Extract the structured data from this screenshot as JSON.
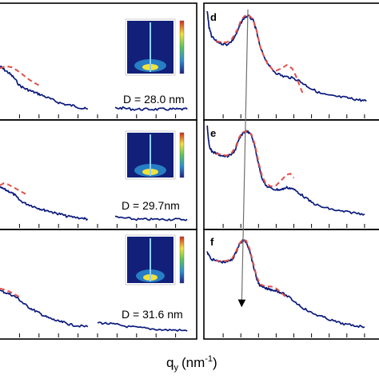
{
  "chart_data": {
    "type": "line",
    "xlabel": "q",
    "xlabel_sub": "y",
    "xlabel_unit": "(nm",
    "xlabel_unit_sup": "-1",
    "xlabel_unit_end": ")",
    "colors": {
      "data": "#0a1a7c",
      "fit": "#e0504a",
      "arrow": "#707070",
      "axes": "#000000"
    },
    "line_styles": {
      "data": "solid",
      "fit": "dashed"
    },
    "panels": [
      {
        "column": "left",
        "row": 0,
        "label": "",
        "annotation": "D = 28.0 nm",
        "inset": "2D GISAXS colormap",
        "data_segments": [
          [
            [
              0,
              0.54
            ],
            [
              0.2,
              0.57
            ],
            [
              0.45,
              0.6
            ],
            [
              0.7,
              0.64
            ],
            [
              1.0,
              0.71
            ],
            [
              1.3,
              0.74
            ],
            [
              1.6,
              0.76
            ],
            [
              1.9,
              0.78
            ],
            [
              2.2,
              0.8
            ],
            [
              2.6,
              0.83
            ],
            [
              3.0,
              0.86
            ],
            [
              3.4,
              0.88
            ],
            [
              3.8,
              0.89
            ],
            [
              4.2,
              0.91
            ],
            [
              4.5,
              0.92
            ]
          ],
          [
            [
              5.9,
              0.91
            ],
            [
              6.3,
              0.91
            ],
            [
              6.8,
              0.92
            ],
            [
              7.3,
              0.92
            ],
            [
              7.8,
              0.92
            ],
            [
              8.3,
              0.92
            ],
            [
              8.8,
              0.92
            ],
            [
              9.2,
              0.92
            ],
            [
              9.6,
              0.92
            ]
          ]
        ],
        "fit": [
          [
            0,
            0.56
          ],
          [
            0.3,
            0.54
          ],
          [
            0.6,
            0.55
          ],
          [
            0.9,
            0.58
          ],
          [
            1.2,
            0.62
          ],
          [
            1.5,
            0.66
          ],
          [
            2.0,
            0.71
          ]
        ]
      },
      {
        "column": "left",
        "row": 1,
        "label": "",
        "annotation": "D = 29.7nm",
        "inset": "2D GISAXS colormap",
        "data_segments": [
          [
            [
              0,
              0.62
            ],
            [
              0.25,
              0.64
            ],
            [
              0.5,
              0.66
            ],
            [
              0.75,
              0.69
            ],
            [
              1.0,
              0.74
            ],
            [
              1.3,
              0.77
            ],
            [
              1.6,
              0.79
            ],
            [
              1.9,
              0.81
            ],
            [
              2.2,
              0.83
            ],
            [
              2.5,
              0.84
            ],
            [
              2.8,
              0.86
            ],
            [
              3.1,
              0.87
            ],
            [
              3.4,
              0.89
            ],
            [
              3.8,
              0.9
            ],
            [
              4.3,
              0.91
            ],
            [
              4.5,
              0.92
            ]
          ],
          [
            [
              5.9,
              0.9
            ],
            [
              6.5,
              0.91
            ],
            [
              7.0,
              0.92
            ],
            [
              7.5,
              0.92
            ],
            [
              8.0,
              0.92
            ],
            [
              8.5,
              0.92
            ],
            [
              9.0,
              0.92
            ],
            [
              9.6,
              0.92
            ]
          ]
        ],
        "fit": [
          [
            0,
            0.6
          ],
          [
            0.2,
            0.58
          ],
          [
            0.4,
            0.59
          ],
          [
            0.6,
            0.61
          ],
          [
            0.9,
            0.64
          ],
          [
            1.2,
            0.67
          ],
          [
            1.4,
            0.69
          ]
        ]
      },
      {
        "column": "left",
        "row": 2,
        "label": "",
        "annotation": "D = 31.6 nm",
        "inset": "2D GISAXS colormap",
        "data_segments": [
          [
            [
              0,
              0.56
            ],
            [
              0.3,
              0.58
            ],
            [
              0.6,
              0.6
            ],
            [
              0.9,
              0.63
            ],
            [
              1.2,
              0.68
            ],
            [
              1.5,
              0.72
            ],
            [
              1.8,
              0.75
            ],
            [
              2.1,
              0.78
            ],
            [
              2.4,
              0.81
            ],
            [
              2.7,
              0.83
            ],
            [
              3.0,
              0.85
            ],
            [
              3.3,
              0.86
            ],
            [
              3.6,
              0.88
            ],
            [
              4.0,
              0.89
            ],
            [
              4.5,
              0.9
            ]
          ],
          [
            [
              5.0,
              0.86
            ],
            [
              5.5,
              0.87
            ],
            [
              6.0,
              0.88
            ],
            [
              6.6,
              0.9
            ],
            [
              7.2,
              0.91
            ],
            [
              7.8,
              0.92
            ],
            [
              8.4,
              0.93
            ],
            [
              9.0,
              0.93
            ],
            [
              9.6,
              0.94
            ]
          ]
        ],
        "fit": [
          [
            0,
            0.54
          ],
          [
            0.2,
            0.55
          ],
          [
            0.5,
            0.57
          ],
          [
            0.8,
            0.6
          ],
          [
            1.0,
            0.62
          ]
        ]
      },
      {
        "column": "right",
        "row": 0,
        "label": "d",
        "annotation": "",
        "data_segments": [
          [
            [
              0.1,
              0.05
            ],
            [
              0.2,
              0.2
            ],
            [
              0.35,
              0.28
            ],
            [
              0.6,
              0.32
            ],
            [
              0.9,
              0.34
            ],
            [
              1.2,
              0.35
            ],
            [
              1.5,
              0.32
            ],
            [
              1.8,
              0.24
            ],
            [
              2.0,
              0.16
            ],
            [
              2.2,
              0.11
            ],
            [
              2.45,
              0.1
            ],
            [
              2.7,
              0.14
            ],
            [
              2.9,
              0.24
            ],
            [
              3.1,
              0.38
            ],
            [
              3.4,
              0.48
            ],
            [
              3.7,
              0.56
            ],
            [
              4.0,
              0.6
            ],
            [
              4.4,
              0.63
            ],
            [
              4.8,
              0.64
            ],
            [
              5.2,
              0.66
            ],
            [
              5.6,
              0.7
            ],
            [
              6.0,
              0.74
            ],
            [
              6.5,
              0.78
            ],
            [
              7.0,
              0.8
            ],
            [
              7.5,
              0.81
            ],
            [
              8.0,
              0.82
            ],
            [
              8.4,
              0.83
            ],
            [
              8.8,
              0.84
            ],
            [
              9.1,
              0.85
            ]
          ],
          [
            [
              9.9,
              0.78
            ],
            [
              10.1,
              0.86
            ],
            [
              10.3,
              0.88
            ]
          ]
        ],
        "fit": [
          [
            0.6,
            0.32
          ],
          [
            0.9,
            0.33
          ],
          [
            1.2,
            0.33
          ],
          [
            1.5,
            0.3
          ],
          [
            1.8,
            0.22
          ],
          [
            2.0,
            0.14
          ],
          [
            2.2,
            0.1
          ],
          [
            2.45,
            0.09
          ],
          [
            2.7,
            0.13
          ],
          [
            2.9,
            0.23
          ],
          [
            3.1,
            0.37
          ],
          [
            3.3,
            0.45
          ],
          [
            3.5,
            0.52
          ],
          [
            3.8,
            0.57
          ],
          [
            4.0,
            0.58
          ],
          [
            4.3,
            0.56
          ],
          [
            4.6,
            0.53
          ],
          [
            4.9,
            0.56
          ],
          [
            5.1,
            0.62
          ],
          [
            5.3,
            0.7
          ],
          [
            5.5,
            0.78
          ]
        ]
      },
      {
        "column": "right",
        "row": 1,
        "label": "e",
        "annotation": "",
        "data_segments": [
          [
            [
              0.1,
              0.04
            ],
            [
              0.2,
              0.22
            ],
            [
              0.35,
              0.28
            ],
            [
              0.6,
              0.3
            ],
            [
              0.9,
              0.32
            ],
            [
              1.2,
              0.33
            ],
            [
              1.5,
              0.31
            ],
            [
              1.7,
              0.26
            ],
            [
              1.9,
              0.17
            ],
            [
              2.1,
              0.11
            ],
            [
              2.35,
              0.09
            ],
            [
              2.6,
              0.13
            ],
            [
              2.8,
              0.24
            ],
            [
              3.0,
              0.4
            ],
            [
              3.2,
              0.53
            ],
            [
              3.4,
              0.6
            ],
            [
              3.7,
              0.63
            ],
            [
              4.0,
              0.64
            ],
            [
              4.3,
              0.64
            ],
            [
              4.6,
              0.62
            ],
            [
              4.9,
              0.63
            ],
            [
              5.2,
              0.66
            ],
            [
              5.6,
              0.71
            ],
            [
              6.0,
              0.76
            ],
            [
              6.5,
              0.8
            ],
            [
              7.0,
              0.82
            ],
            [
              7.5,
              0.84
            ],
            [
              8.0,
              0.85
            ],
            [
              8.5,
              0.86
            ],
            [
              9.0,
              0.87
            ]
          ],
          [
            [
              9.9,
              0.8
            ],
            [
              10.1,
              0.88
            ],
            [
              10.3,
              0.9
            ]
          ]
        ],
        "fit": [
          [
            0.6,
            0.3
          ],
          [
            0.9,
            0.31
          ],
          [
            1.2,
            0.32
          ],
          [
            1.5,
            0.29
          ],
          [
            1.7,
            0.24
          ],
          [
            1.9,
            0.15
          ],
          [
            2.1,
            0.1
          ],
          [
            2.35,
            0.09
          ],
          [
            2.6,
            0.12
          ],
          [
            2.8,
            0.22
          ],
          [
            3.0,
            0.38
          ],
          [
            3.2,
            0.51
          ],
          [
            3.4,
            0.58
          ],
          [
            3.7,
            0.61
          ],
          [
            4.0,
            0.6
          ],
          [
            4.3,
            0.55
          ],
          [
            4.6,
            0.5
          ],
          [
            4.8,
            0.49
          ],
          [
            5.0,
            0.53
          ]
        ]
      },
      {
        "column": "right",
        "row": 2,
        "label": "f",
        "annotation": "",
        "data_segments": [
          [
            [
              0.1,
              0.2
            ],
            [
              0.3,
              0.26
            ],
            [
              0.6,
              0.28
            ],
            [
              0.9,
              0.29
            ],
            [
              1.2,
              0.29
            ],
            [
              1.5,
              0.27
            ],
            [
              1.7,
              0.21
            ],
            [
              1.9,
              0.13
            ],
            [
              2.1,
              0.09
            ],
            [
              2.3,
              0.1
            ],
            [
              2.5,
              0.18
            ],
            [
              2.7,
              0.32
            ],
            [
              2.9,
              0.45
            ],
            [
              3.1,
              0.52
            ],
            [
              3.4,
              0.54
            ],
            [
              3.7,
              0.55
            ],
            [
              4.0,
              0.56
            ],
            [
              4.3,
              0.58
            ],
            [
              4.7,
              0.62
            ],
            [
              5.1,
              0.67
            ],
            [
              5.5,
              0.72
            ],
            [
              6.0,
              0.77
            ],
            [
              6.5,
              0.8
            ],
            [
              7.0,
              0.83
            ],
            [
              7.5,
              0.86
            ],
            [
              8.0,
              0.88
            ],
            [
              8.5,
              0.89
            ],
            [
              9.0,
              0.9
            ]
          ],
          [
            [
              9.9,
              0.82
            ],
            [
              10.1,
              0.9
            ],
            [
              10.3,
              0.92
            ]
          ]
        ],
        "fit": [
          [
            0.6,
            0.28
          ],
          [
            0.9,
            0.28
          ],
          [
            1.2,
            0.28
          ],
          [
            1.5,
            0.26
          ],
          [
            1.7,
            0.2
          ],
          [
            1.9,
            0.12
          ],
          [
            2.1,
            0.08
          ],
          [
            2.3,
            0.09
          ],
          [
            2.5,
            0.17
          ],
          [
            2.7,
            0.3
          ],
          [
            2.9,
            0.43
          ],
          [
            3.1,
            0.5
          ],
          [
            3.4,
            0.52
          ],
          [
            3.7,
            0.52
          ],
          [
            4.0,
            0.54
          ],
          [
            4.3,
            0.58
          ],
          [
            4.6,
            0.63
          ]
        ]
      }
    ],
    "peak_shift_arrow": {
      "from": [
        2.4,
        0.04
      ],
      "to": [
        2.05,
        0.68
      ],
      "direction": "down",
      "spans": "d to f"
    }
  }
}
